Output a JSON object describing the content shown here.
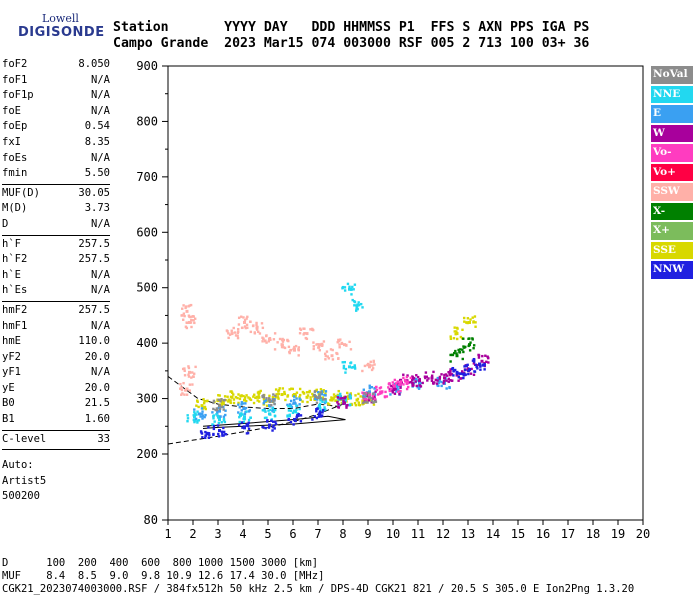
{
  "logo": {
    "top": "Lowell",
    "bottom": "DIGISONDE"
  },
  "header": {
    "line1": "Station       YYYY DAY   DDD HHMMSS P1  FFS S AXN PPS IGA PS",
    "line2": "Campo Grande  2023 Mar15 074 003000 RSF 005 2 713 100 03+ 36"
  },
  "params": [
    {
      "name": "foF2",
      "value": "8.050"
    },
    {
      "name": "foF1",
      "value": "N/A"
    },
    {
      "name": "foF1p",
      "value": "N/A"
    },
    {
      "name": "foE",
      "value": "N/A"
    },
    {
      "name": "foEp",
      "value": "0.54"
    },
    {
      "name": "fxI",
      "value": "8.35"
    },
    {
      "name": "foEs",
      "value": "N/A"
    },
    {
      "name": "fmin",
      "value": "5.50"
    },
    {
      "sep": true
    },
    {
      "name": "MUF(D)",
      "value": "30.05"
    },
    {
      "name": "M(D)",
      "value": "3.73"
    },
    {
      "name": "D",
      "value": "N/A"
    },
    {
      "sep": true
    },
    {
      "name": "h`F",
      "value": "257.5"
    },
    {
      "name": "h`F2",
      "value": "257.5"
    },
    {
      "name": "h`E",
      "value": "N/A"
    },
    {
      "name": "h`Es",
      "value": "N/A"
    },
    {
      "sep": true
    },
    {
      "name": "hmF2",
      "value": "257.5"
    },
    {
      "name": "hmF1",
      "value": "N/A"
    },
    {
      "name": "hmE",
      "value": "110.0"
    },
    {
      "name": "yF2",
      "value": "20.0"
    },
    {
      "name": "yF1",
      "value": "N/A"
    },
    {
      "name": "yE",
      "value": "20.0"
    },
    {
      "name": "B0",
      "value": "21.5"
    },
    {
      "name": "B1",
      "value": "1.60"
    },
    {
      "sep": true
    },
    {
      "name": "C-level",
      "value": "33"
    },
    {
      "sep": true
    }
  ],
  "auto": [
    "Auto:",
    "Artist5",
    "500200"
  ],
  "legend": [
    {
      "label": "NoVal",
      "color": "#8c8c8c"
    },
    {
      "label": "NNE",
      "color": "#22d8f0"
    },
    {
      "label": "E",
      "color": "#3aa0f2"
    },
    {
      "label": "W",
      "color": "#a8009c"
    },
    {
      "label": "Vo-",
      "color": "#ff3cc0"
    },
    {
      "label": "Vo+",
      "color": "#ff0044"
    },
    {
      "label": "SSW",
      "color": "#ffb0a8"
    },
    {
      "label": "X-",
      "color": "#008000"
    },
    {
      "label": "X+",
      "color": "#7cbc5c"
    },
    {
      "label": "SSE",
      "color": "#d8d800"
    },
    {
      "label": "NNW",
      "color": "#2020e0"
    }
  ],
  "chart_data": {
    "type": "scatter",
    "x_ticks": [
      "1",
      "2",
      "3",
      "4",
      "5",
      "6",
      "7",
      "8",
      "9",
      "10",
      "11",
      "12",
      "13",
      "14",
      "15",
      "16",
      "17",
      "18",
      "19",
      "20"
    ],
    "y_ticks": [
      "900",
      "800",
      "700",
      "600",
      "500",
      "400",
      "300",
      "200",
      "80"
    ],
    "xlim": [
      1,
      20
    ],
    "ylim": [
      80,
      900
    ],
    "ylabel": "",
    "xlabel": "",
    "series": [
      {
        "name": "SSE",
        "color": "#d8d800",
        "points": [
          [
            2.3,
            290
          ],
          [
            3,
            300
          ],
          [
            3.5,
            305
          ],
          [
            4,
            300
          ],
          [
            4.5,
            305
          ],
          [
            5,
            300
          ],
          [
            5.5,
            310
          ],
          [
            6,
            310
          ],
          [
            6.5,
            305
          ],
          [
            7,
            310
          ],
          [
            7.5,
            300
          ],
          [
            8,
            305
          ],
          [
            8.5,
            300
          ],
          [
            9,
            300
          ],
          [
            12.5,
            420
          ],
          [
            13,
            440
          ]
        ]
      },
      {
        "name": "E",
        "color": "#3aa0f2",
        "points": [
          [
            2.2,
            275
          ],
          [
            3,
            280
          ],
          [
            4,
            285
          ],
          [
            5,
            290
          ],
          [
            6,
            295
          ],
          [
            7,
            305
          ],
          [
            8,
            300
          ],
          [
            9,
            315
          ],
          [
            10,
            320
          ],
          [
            11,
            330
          ],
          [
            12,
            330
          ]
        ]
      },
      {
        "name": "NNE",
        "color": "#22d8f0",
        "points": [
          [
            2,
            270
          ],
          [
            3,
            265
          ],
          [
            4,
            270
          ],
          [
            5,
            275
          ],
          [
            6,
            280
          ],
          [
            7,
            290
          ],
          [
            8,
            300
          ],
          [
            8.2,
            500
          ],
          [
            8.5,
            470
          ],
          [
            8.2,
            360
          ]
        ]
      },
      {
        "name": "W",
        "color": "#a8009c",
        "points": [
          [
            8,
            295
          ],
          [
            9,
            305
          ],
          [
            10,
            320
          ],
          [
            10.5,
            335
          ],
          [
            11,
            335
          ],
          [
            11.5,
            340
          ],
          [
            12,
            340
          ],
          [
            12.5,
            345
          ],
          [
            13,
            355
          ],
          [
            13.5,
            370
          ]
        ]
      },
      {
        "name": "NNW",
        "color": "#2020e0",
        "points": [
          [
            2.5,
            240
          ],
          [
            3,
            245
          ],
          [
            4,
            250
          ],
          [
            5,
            255
          ],
          [
            6,
            265
          ],
          [
            7,
            275
          ],
          [
            12.5,
            350
          ],
          [
            13,
            355
          ],
          [
            13.4,
            365
          ]
        ]
      },
      {
        "name": "SSW",
        "color": "#ffb0a8",
        "points": [
          [
            1.7,
            460
          ],
          [
            1.8,
            440
          ],
          [
            1.8,
            350
          ],
          [
            1.7,
            320
          ],
          [
            3.5,
            420
          ],
          [
            4,
            440
          ],
          [
            4.5,
            430
          ],
          [
            5,
            410
          ],
          [
            5.5,
            400
          ],
          [
            6,
            390
          ],
          [
            6.5,
            420
          ],
          [
            7,
            400
          ],
          [
            7.5,
            380
          ],
          [
            8,
            400
          ],
          [
            9,
            360
          ]
        ]
      },
      {
        "name": "Vo-",
        "color": "#ff3cc0",
        "points": [
          [
            9,
            310
          ],
          [
            9.5,
            315
          ],
          [
            10,
            325
          ],
          [
            10.5,
            330
          ]
        ]
      },
      {
        "name": "X-",
        "color": "#008000",
        "points": [
          [
            12.5,
            380
          ],
          [
            13,
            400
          ]
        ]
      },
      {
        "name": "NoVal",
        "color": "#8c8c8c",
        "points": [
          [
            3,
            290
          ],
          [
            5,
            300
          ],
          [
            7,
            305
          ],
          [
            9,
            305
          ]
        ]
      }
    ]
  },
  "bottom": {
    "line1": "D      100  200  400  600  800 1000 1500 3000 [km]",
    "line2": "MUF    8.4  8.5  9.0  9.8 10.9 12.6 17.4 30.0 [MHz]",
    "line3": "CGK21_2023074003000.RSF / 384fx512h 50 kHz 2.5 km / DPS-4D CGK21 821 / 20.5 S 305.0 E Ion2Png 1.3.20"
  }
}
